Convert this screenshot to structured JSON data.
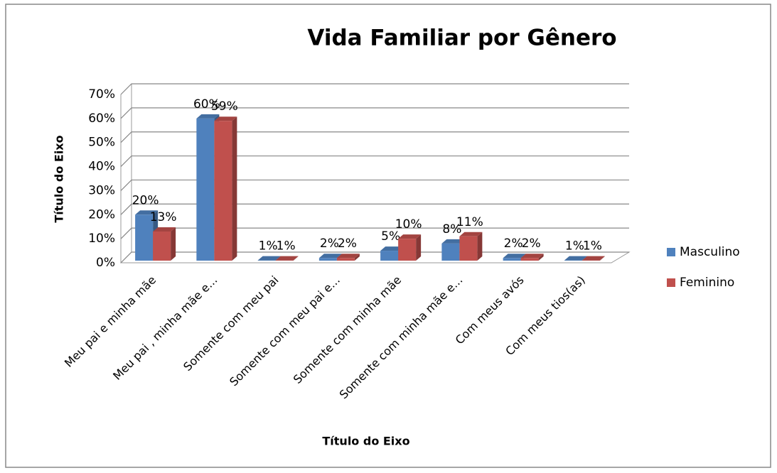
{
  "chart_data": {
    "type": "bar3d",
    "title": "Vida Familiar por Gênero",
    "x_label": "Título do Eixo",
    "y_label": "Título do Eixo",
    "categories": [
      "Meu pai e minha mãe",
      "Meu pai , minha mãe e...",
      "Somente com meu pai",
      "Somente com meu pai e...",
      "Somente com minha mãe",
      "Somente com minha mãe e...",
      "Com meus avós",
      "Com meus tios(as)"
    ],
    "series": [
      {
        "name": "Masculino",
        "color": "#4f81bd",
        "values": [
          20,
          60,
          1,
          2,
          5,
          8,
          2,
          1
        ],
        "value_labels": [
          "20%",
          "60%",
          "1%",
          "2%",
          "5%",
          "8%",
          "2%",
          "1%"
        ]
      },
      {
        "name": "Feminino",
        "color": "#c0504d",
        "values": [
          13,
          59,
          1,
          2,
          10,
          11,
          2,
          1
        ],
        "value_labels": [
          "13%",
          "59%",
          "1%",
          "2%",
          "10%",
          "11%",
          "2%",
          "1%"
        ]
      }
    ],
    "ylim": [
      0,
      70
    ],
    "yticks": [
      {
        "value": 0,
        "label": "0%"
      },
      {
        "value": 10,
        "label": "10%"
      },
      {
        "value": 20,
        "label": "20%"
      },
      {
        "value": 30,
        "label": "30%"
      },
      {
        "value": 40,
        "label": "40%"
      },
      {
        "value": 50,
        "label": "50%"
      },
      {
        "value": 60,
        "label": "60%"
      },
      {
        "value": 70,
        "label": "70%"
      }
    ],
    "grid": true,
    "legend": "right"
  }
}
